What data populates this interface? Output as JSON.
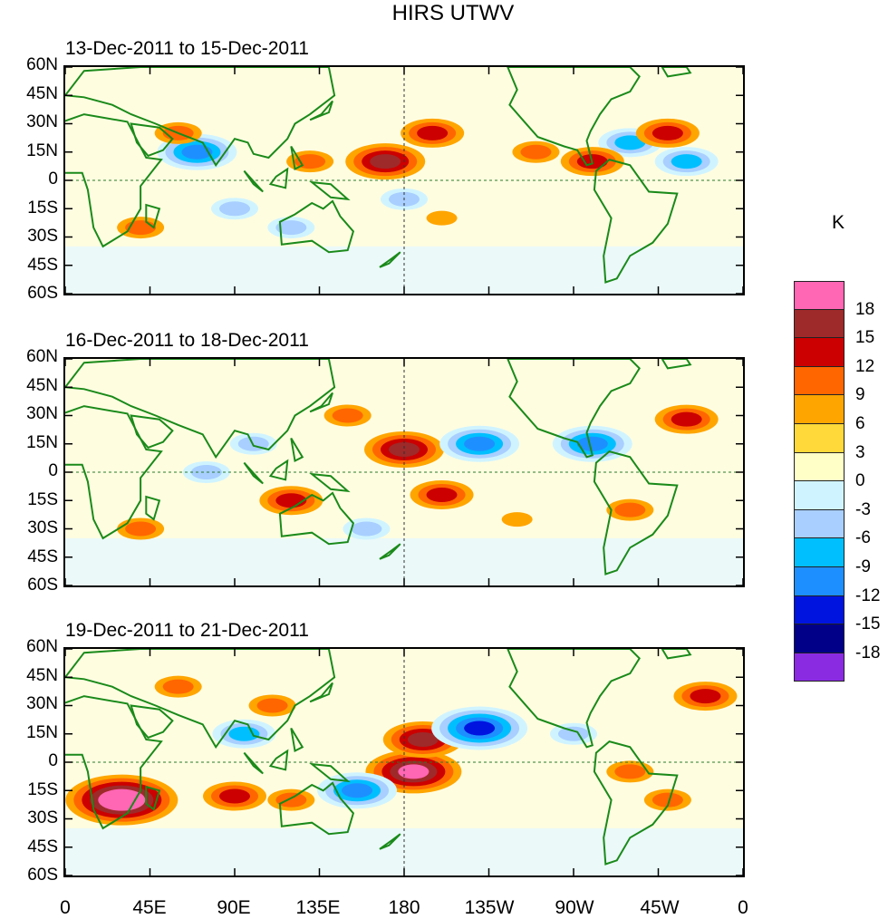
{
  "title": "HIRS UTWV",
  "panels": [
    {
      "date_range": "13-Dec-2011 to 15-Dec-2011"
    },
    {
      "date_range": "16-Dec-2011 to 18-Dec-2011"
    },
    {
      "date_range": "19-Dec-2011 to 21-Dec-2011"
    }
  ],
  "lat_labels": [
    "60N",
    "45N",
    "30N",
    "15N",
    "0",
    "15S",
    "30S",
    "45S",
    "60S"
  ],
  "lon_labels": [
    "0",
    "45E",
    "90E",
    "135E",
    "180",
    "135W",
    "90W",
    "45W",
    "0"
  ],
  "colorbar": {
    "unit": "K",
    "labels": [
      "18",
      "15",
      "12",
      "9",
      "6",
      "3",
      "0",
      "-3",
      "-6",
      "-9",
      "-12",
      "-15",
      "-18"
    ],
    "colors": [
      "#ff66b3",
      "#9e2a2a",
      "#cc0000",
      "#ff6600",
      "#ffa500",
      "#ffd83a",
      "#ffffc8",
      "#d0f4ff",
      "#a8cfff",
      "#00bfff",
      "#1e8fff",
      "#0014e0",
      "#000088",
      "#8a2be2"
    ]
  },
  "map": {
    "coast_color": "#1a8a1a",
    "anomalies": [
      [
        [
          195,
          25,
          8
        ],
        [
          300,
          20,
          -9
        ],
        [
          320,
          25,
          10
        ],
        [
          70,
          15,
          -11
        ],
        [
          280,
          10,
          9
        ],
        [
          170,
          10,
          12
        ],
        [
          60,
          25,
          6
        ],
        [
          130,
          10,
          5
        ],
        [
          250,
          15,
          7
        ],
        [
          90,
          -15,
          -6
        ],
        [
          180,
          -10,
          -5
        ],
        [
          120,
          -25,
          -5
        ],
        [
          40,
          -25,
          5
        ],
        [
          330,
          10,
          -8
        ],
        [
          200,
          -20,
          4
        ]
      ],
      [
        [
          180,
          12,
          12
        ],
        [
          200,
          -12,
          10
        ],
        [
          330,
          28,
          10
        ],
        [
          220,
          15,
          -11
        ],
        [
          280,
          15,
          -12
        ],
        [
          100,
          15,
          -6
        ],
        [
          120,
          -15,
          9
        ],
        [
          160,
          -30,
          -6
        ],
        [
          40,
          -30,
          7
        ],
        [
          150,
          30,
          5
        ],
        [
          300,
          -20,
          5
        ],
        [
          75,
          0,
          -5
        ],
        [
          240,
          -25,
          4
        ]
      ],
      [
        [
          185,
          -5,
          15
        ],
        [
          190,
          12,
          13
        ],
        [
          30,
          -20,
          18
        ],
        [
          220,
          18,
          -14
        ],
        [
          95,
          15,
          -10
        ],
        [
          155,
          -15,
          -12
        ],
        [
          90,
          -18,
          8
        ],
        [
          270,
          15,
          -6
        ],
        [
          320,
          -20,
          6
        ],
        [
          60,
          40,
          6
        ],
        [
          340,
          35,
          8
        ],
        [
          110,
          30,
          5
        ],
        [
          120,
          -20,
          7
        ],
        [
          300,
          -5,
          5
        ]
      ]
    ]
  }
}
